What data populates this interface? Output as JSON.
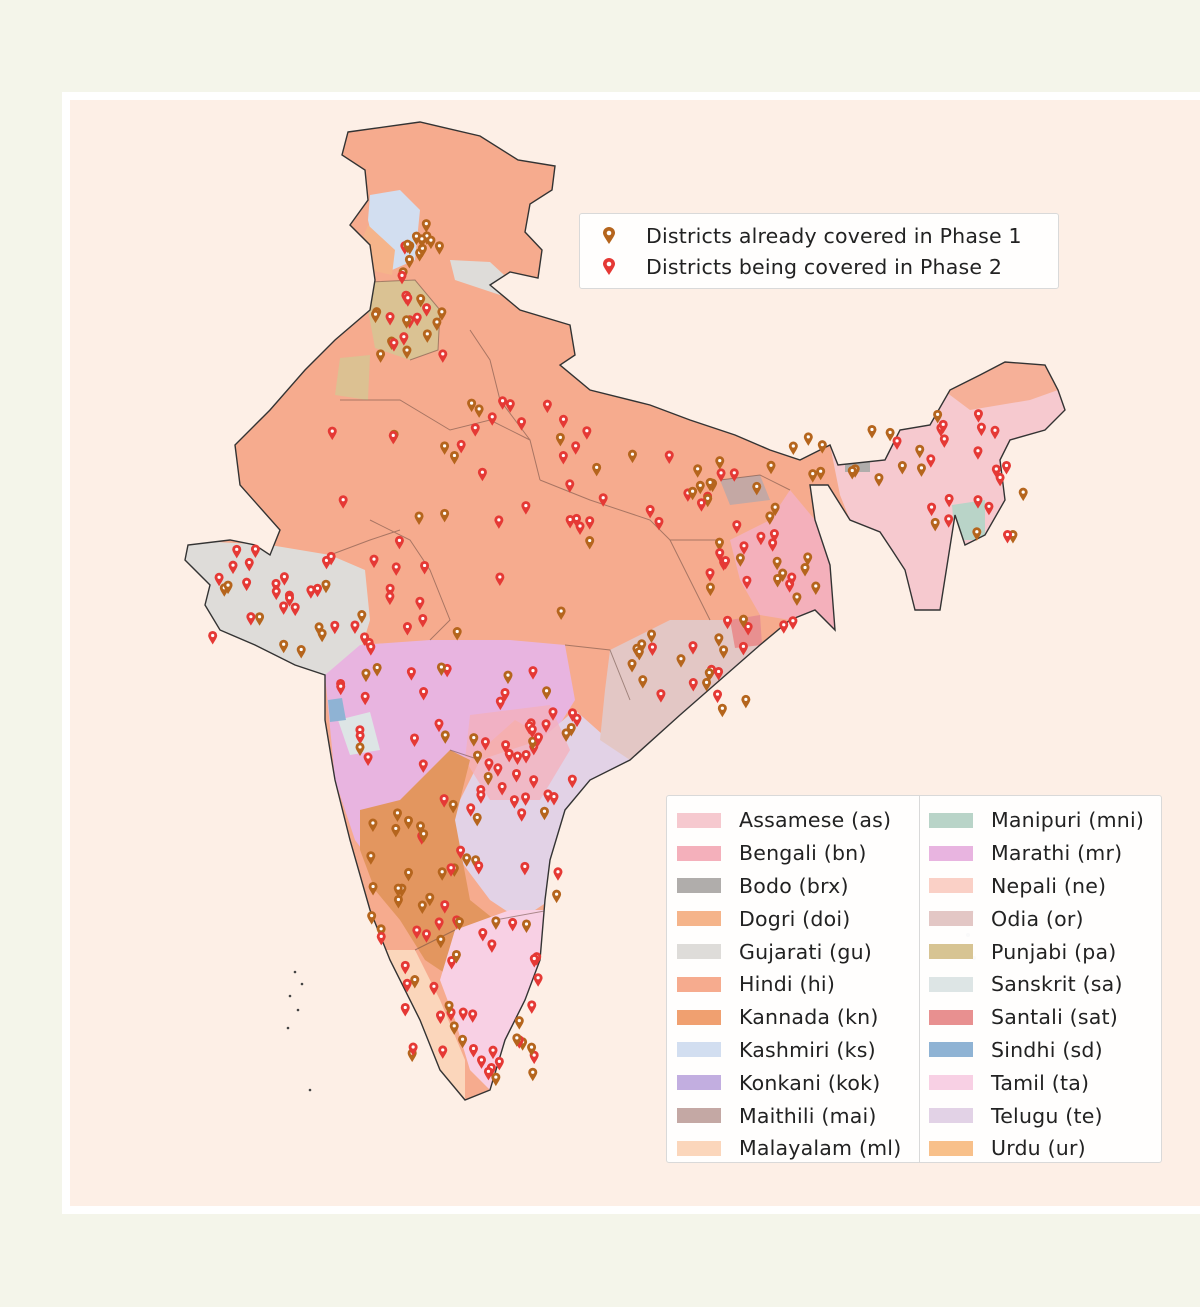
{
  "marker_legend": [
    {
      "label": "Districts already covered in Phase 1",
      "color": "#b5651d"
    },
    {
      "label": "Districts being covered in Phase 2",
      "color": "#e53935"
    }
  ],
  "languages": [
    {
      "label": "Assamese (as)",
      "color": "#f6c9cf"
    },
    {
      "label": "Bengali (bn)",
      "color": "#f4b0bb"
    },
    {
      "label": "Bodo (brx)",
      "color": "#b0adab"
    },
    {
      "label": "Dogri (doi)",
      "color": "#f5b48a"
    },
    {
      "label": "Gujarati (gu)",
      "color": "#dedcd9"
    },
    {
      "label": "Hindi (hi)",
      "color": "#f6ab8e"
    },
    {
      "label": "Kannada (kn)",
      "color": "#f0a070"
    },
    {
      "label": "Kashmiri (ks)",
      "color": "#d2def0"
    },
    {
      "label": "Konkani (kok)",
      "color": "#c2aee0"
    },
    {
      "label": "Maithili (mai)",
      "color": "#c4a8a4"
    },
    {
      "label": "Malayalam (ml)",
      "color": "#fbd6bb"
    },
    {
      "label": "Manipuri (mni)",
      "color": "#b9d4c8"
    },
    {
      "label": "Marathi (mr)",
      "color": "#e8b4e0"
    },
    {
      "label": "Nepali (ne)",
      "color": "#fad0c6"
    },
    {
      "label": "Odia (or)",
      "color": "#e3c7c5"
    },
    {
      "label": "Punjabi (pa)",
      "color": "#d7c493"
    },
    {
      "label": "Sanskrit (sa)",
      "color": "#dde5e5"
    },
    {
      "label": "Santali (sat)",
      "color": "#e89090"
    },
    {
      "label": "Sindhi (sd)",
      "color": "#8fb3d4"
    },
    {
      "label": "Tamil (ta)",
      "color": "#f8d0e4"
    },
    {
      "label": "Telugu (te)",
      "color": "#e2d2e6"
    },
    {
      "label": "Urdu (ur)",
      "color": "#f8c08a"
    }
  ]
}
